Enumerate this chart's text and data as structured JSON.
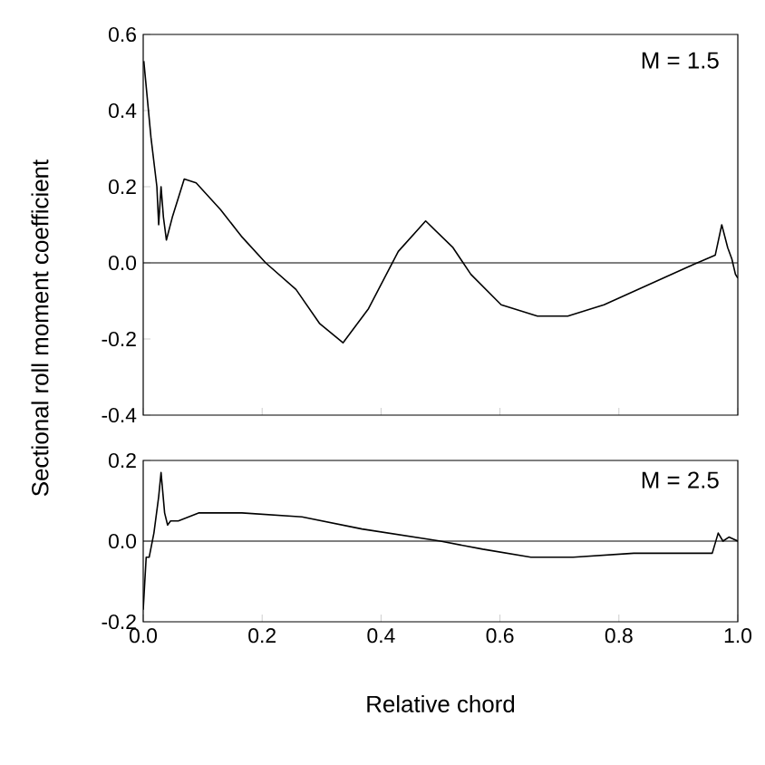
{
  "chart_data": [
    {
      "type": "line",
      "ylabel": "Sectional roll moment coefficient",
      "annotations": [
        "M = 1.5"
      ],
      "color": "#000000",
      "x": [
        0.001,
        0.013,
        0.023,
        0.026,
        0.03,
        0.034,
        0.039,
        0.049,
        0.069,
        0.089,
        0.13,
        0.165,
        0.206,
        0.257,
        0.297,
        0.336,
        0.379,
        0.429,
        0.475,
        0.521,
        0.551,
        0.602,
        0.663,
        0.714,
        0.775,
        0.846,
        0.917,
        0.962,
        0.973,
        0.983,
        0.99,
        0.996,
        1.0
      ],
      "values": [
        0.53,
        0.33,
        0.2,
        0.1,
        0.2,
        0.12,
        0.06,
        0.12,
        0.22,
        0.21,
        0.14,
        0.07,
        0.0,
        -0.07,
        -0.16,
        -0.21,
        -0.12,
        0.03,
        0.11,
        0.04,
        -0.03,
        -0.11,
        -0.14,
        -0.14,
        -0.11,
        -0.06,
        -0.01,
        0.02,
        0.1,
        0.04,
        0.01,
        -0.03,
        -0.04
      ],
      "xlim": [
        0,
        1
      ],
      "xticks": [
        0,
        0.2,
        0.4,
        0.6,
        0.8,
        1
      ],
      "ylim": [
        -0.4,
        0.6
      ],
      "yticks": [
        -0.4,
        -0.2,
        {
          "value": 0,
          "label": "0.0"
        },
        0.2,
        0.4,
        0.6
      ],
      "tick_labels": "y",
      "ref_lines": [
        {
          "axis": "y",
          "value": 0
        }
      ]
    },
    {
      "type": "line",
      "xlabel": "Relative chord",
      "annotations": [
        "M = 2.5"
      ],
      "color": "#000000",
      "x": [
        0,
        0.005,
        0.01,
        0.018,
        0.026,
        0.03,
        0.036,
        0.041,
        0.046,
        0.059,
        0.094,
        0.166,
        0.267,
        0.368,
        0.5,
        0.571,
        0.652,
        0.723,
        0.825,
        0.927,
        0.957,
        0.967,
        0.975,
        0.985,
        1.0
      ],
      "values": [
        -0.17,
        -0.04,
        -0.04,
        0.02,
        0.11,
        0.17,
        0.07,
        0.04,
        0.05,
        0.05,
        0.07,
        0.07,
        0.06,
        0.03,
        0.0,
        -0.02,
        -0.04,
        -0.04,
        -0.03,
        -0.03,
        -0.03,
        0.02,
        0.0,
        0.01,
        0.0
      ],
      "xlim": [
        0,
        1
      ],
      "xticks": [
        {
          "value": 0,
          "label": "0.0"
        },
        0.2,
        0.4,
        0.6,
        0.8,
        {
          "value": 1,
          "label": "1.0"
        }
      ],
      "ylim": [
        -0.2,
        0.2
      ],
      "yticks": [
        -0.2,
        {
          "value": 0,
          "label": "0.0"
        },
        0.2
      ],
      "ref_lines": [
        {
          "axis": "y",
          "value": 0
        }
      ]
    }
  ]
}
